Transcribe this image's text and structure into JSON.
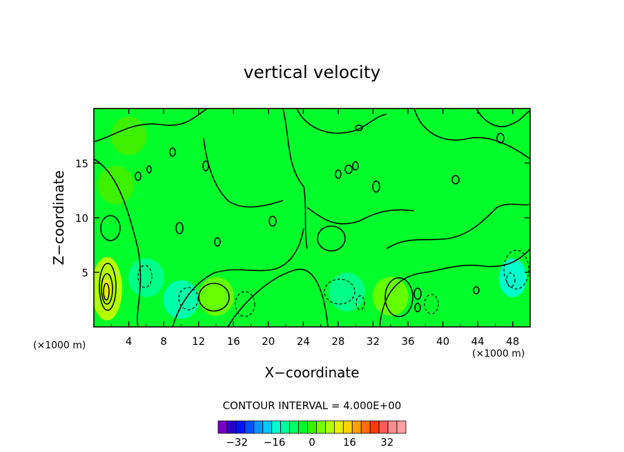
{
  "chart_data": {
    "type": "heatmap",
    "title": "vertical velocity",
    "xlabel": "X−coordinate",
    "ylabel": "Z−coordinate",
    "x_unit_left": "(×1000 m)",
    "x_unit_right": "(×1000 m)",
    "xlim": [
      0,
      50
    ],
    "ylim": [
      0,
      20
    ],
    "x_ticks": [
      "4",
      "8",
      "12",
      "16",
      "20",
      "24",
      "28",
      "32",
      "36",
      "40",
      "44",
      "48"
    ],
    "y_ticks": [
      "5",
      "10",
      "15"
    ],
    "contour_interval_label": "CONTOUR INTERVAL = 4.000E+00",
    "background_level_color": "#00ff2a",
    "features": [
      {
        "x": 1.5,
        "z": 3.5,
        "level": 16,
        "color": "#b4ff00"
      },
      {
        "x": 34,
        "z": 2.8,
        "level": 8,
        "color": "#66ff00"
      },
      {
        "x": 14,
        "z": 2.8,
        "level": 8,
        "color": "#66ff00"
      },
      {
        "x": 4,
        "z": 17.5,
        "level": 4,
        "color": "#3cf000"
      },
      {
        "x": 2.5,
        "z": 13,
        "level": 4,
        "color": "#3cf000"
      },
      {
        "x": 29,
        "z": 3.2,
        "level": -4,
        "color": "#00ff88"
      },
      {
        "x": 10,
        "z": 2.5,
        "level": -4,
        "color": "#00ffaa"
      },
      {
        "x": 48,
        "z": 4.5,
        "level": -8,
        "color": "#00ffcc"
      },
      {
        "x": 6,
        "z": 4.5,
        "level": -4,
        "color": "#00ff88"
      }
    ],
    "colorbar": {
      "colors": [
        "#7800c8",
        "#2800c8",
        "#0014ff",
        "#0050ff",
        "#0096ff",
        "#00c8ff",
        "#00ffd2",
        "#00ffa0",
        "#00ff64",
        "#00ff2a",
        "#3cf000",
        "#78ff00",
        "#b4ff00",
        "#e6f000",
        "#ffd200",
        "#ffa000",
        "#ff6e00",
        "#ff3c00",
        "#ff5a5a",
        "#ff8c8c",
        "#ffa0a0"
      ],
      "tick_labels": [
        "−32",
        "−16",
        "0",
        "16",
        "32"
      ],
      "tick_values": [
        -32,
        -16,
        0,
        16,
        32
      ],
      "range": [
        -40,
        40
      ]
    }
  }
}
